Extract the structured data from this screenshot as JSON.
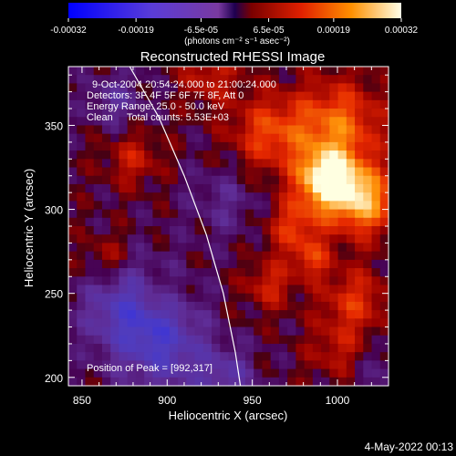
{
  "chart_data": {
    "type": "heatmap",
    "title": "Reconstructed RHESSI Image",
    "xlabel": "Heliocentric X (arcsec)",
    "ylabel": "Heliocentric Y (arcsec)",
    "xlim": [
      842,
      1030
    ],
    "ylim": [
      195,
      385
    ],
    "x_ticks": [
      850,
      900,
      950,
      1000
    ],
    "y_ticks": [
      200,
      250,
      300,
      350
    ],
    "colorbar": {
      "ticks": [
        "-0.00032",
        "-0.00019",
        "-6.5e-05",
        "6.5e-05",
        "0.00019",
        "0.00032"
      ],
      "range": [
        -0.00032,
        0.00032
      ],
      "units": "(photons cm⁻² s⁻¹ asec⁻²)"
    },
    "annotations": {
      "time_range": "9-Oct-2004 20:54:24.000 to 21:00:24.000",
      "detectors": "Detectors: 3F 4F 5F 6F 7F 8F, Att 0",
      "energy": "Energy Range: 25.0 - 50.0 keV",
      "clean": "Clean     Total counts: 5.53E+03",
      "peak": "Position of Peak = [992,317]"
    },
    "peak": [
      992,
      317
    ],
    "limb_points": [
      [
        878,
        385
      ],
      [
        895,
        355
      ],
      [
        910,
        320
      ],
      [
        923,
        285
      ],
      [
        933,
        250
      ],
      [
        940,
        215
      ],
      [
        943,
        195
      ]
    ],
    "grid_nx": 38,
    "grid_ny": 38,
    "hot_spots": [
      [
        994,
        318,
        12,
        0.00032
      ],
      [
        1015,
        305,
        14,
        0.00024
      ],
      [
        1000,
        350,
        18,
        0.00018
      ],
      [
        960,
        345,
        16,
        0.00014
      ],
      [
        975,
        290,
        12,
        0.00013
      ],
      [
        1010,
        245,
        14,
        0.00012
      ],
      [
        880,
        330,
        11,
        9e-05
      ],
      [
        865,
        270,
        10,
        8e-05
      ],
      [
        895,
        250,
        10,
        7e-05
      ],
      [
        960,
        255,
        10,
        0.0001
      ],
      [
        925,
        380,
        12,
        9e-05
      ],
      [
        1000,
        215,
        12,
        8e-05
      ],
      [
        985,
        270,
        8,
        0.00011
      ]
    ],
    "cold_spots": [
      [
        880,
        240,
        20,
        -0.00017
      ],
      [
        900,
        215,
        18,
        -0.00012
      ],
      [
        935,
        200,
        12,
        -0.0001
      ],
      [
        870,
        365,
        12,
        -8e-05
      ],
      [
        935,
        305,
        16,
        -6e-05
      ],
      [
        1030,
        200,
        18,
        -5e-05
      ]
    ]
  },
  "footer": {
    "date": "4-May-2022 00:13"
  }
}
